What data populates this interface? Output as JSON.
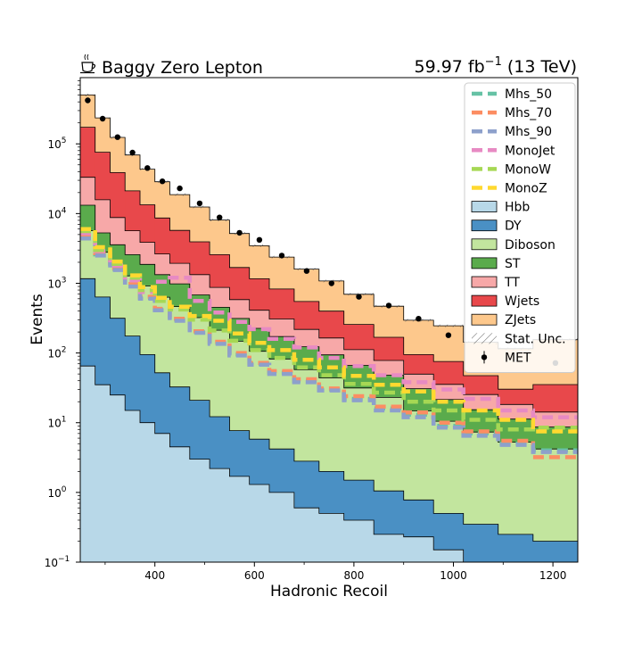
{
  "chart_data": {
    "type": "bar",
    "title_left": "Baggy Zero Lepton",
    "title_left_icon": "coffee-cup-icon",
    "lumi_value": "59.97 fb",
    "lumi_exponent": "−1",
    "lumi_energy": " (13 TeV)",
    "xlabel": "Hadronic Recoil",
    "ylabel": "Events",
    "xlim": [
      250,
      1250
    ],
    "ylim_log10": [
      -1,
      5.95
    ],
    "yscale": "log",
    "x_ticks": [
      400,
      600,
      800,
      1000,
      1200
    ],
    "y_ticks": [
      {
        "exp": -1,
        "base": "10",
        "sup": "−1"
      },
      {
        "exp": 0,
        "base": "10",
        "sup": "0"
      },
      {
        "exp": 1,
        "base": "10",
        "sup": "1"
      },
      {
        "exp": 2,
        "base": "10",
        "sup": "2"
      },
      {
        "exp": 3,
        "base": "10",
        "sup": "3"
      },
      {
        "exp": 4,
        "base": "10",
        "sup": "4"
      },
      {
        "exp": 5,
        "base": "10",
        "sup": "5"
      }
    ],
    "bin_edges": [
      250,
      280,
      310,
      340,
      370,
      400,
      430,
      470,
      510,
      550,
      590,
      630,
      680,
      730,
      780,
      840,
      900,
      960,
      1020,
      1090,
      1160,
      1250
    ],
    "stack": [
      {
        "name": "Hbb",
        "color": "#b8d8e8",
        "values": [
          65,
          35,
          25,
          15,
          10,
          7,
          4.5,
          3,
          2.2,
          1.7,
          1.3,
          1.0,
          0.6,
          0.5,
          0.4,
          0.25,
          0.23,
          0.15,
          0.1,
          0.1,
          0.1
        ]
      },
      {
        "name": "DY",
        "color": "#4a90c4",
        "values": [
          1100,
          600,
          290,
          160,
          85,
          45,
          28,
          18,
          10,
          6,
          4.5,
          3.2,
          2.2,
          1.5,
          1.1,
          0.8,
          0.55,
          0.35,
          0.25,
          0.15,
          0.1
        ]
      },
      {
        "name": "Diboson",
        "color": "#c2e59e",
        "values": [
          4500,
          2150,
          1500,
          1100,
          820,
          580,
          430,
          300,
          200,
          140,
          100,
          78,
          55,
          42,
          30,
          22,
          14,
          10,
          7,
          5,
          4
        ]
      },
      {
        "name": "ST",
        "color": "#5aab4c",
        "values": [
          7500,
          2500,
          1750,
          1300,
          950,
          700,
          520,
          360,
          240,
          165,
          120,
          90,
          65,
          50,
          35,
          25,
          16,
          11,
          8,
          6,
          4.5
        ]
      },
      {
        "name": "TT",
        "color": "#f7a8a8",
        "values": [
          20000,
          10500,
          5200,
          3100,
          2000,
          1300,
          950,
          650,
          420,
          270,
          185,
          135,
          95,
          70,
          45,
          30,
          19,
          14,
          10,
          7,
          5.5
        ]
      },
      {
        "name": "Wjets",
        "color": "#e8484b",
        "values": [
          140000,
          60000,
          30000,
          15500,
          9500,
          6000,
          3800,
          2600,
          1700,
          1100,
          750,
          520,
          330,
          235,
          145,
          90,
          45,
          40,
          22,
          12,
          21
        ]
      },
      {
        "name": "ZJets",
        "color": "#fdc88c",
        "values": [
          330000,
          160000,
          85000,
          48000,
          30000,
          20000,
          13000,
          8500,
          5500,
          3500,
          2300,
          1550,
          1050,
          680,
          440,
          300,
          200,
          170,
          95,
          85,
          120
        ]
      }
    ],
    "signals": [
      {
        "name": "Mhs_50",
        "color": "#66c2a5",
        "values": [
          4600,
          2600,
          1600,
          950,
          620,
          420,
          300,
          200,
          140,
          95,
          70,
          52,
          40,
          30,
          22,
          16,
          13,
          9,
          7,
          5,
          4
        ]
      },
      {
        "name": "Mhs_70",
        "color": "#fc8d62",
        "values": [
          4800,
          2700,
          1650,
          980,
          640,
          430,
          310,
          205,
          145,
          100,
          72,
          55,
          42,
          31,
          24,
          17,
          14,
          10,
          7.5,
          5.5,
          3.2
        ]
      },
      {
        "name": "Mhs_90",
        "color": "#8da0cb",
        "values": [
          4400,
          2500,
          1550,
          900,
          600,
          410,
          290,
          195,
          135,
          92,
          68,
          50,
          38,
          29,
          21,
          15,
          12,
          8.5,
          6.5,
          4.8,
          3.8
        ]
      },
      {
        "name": "MonoJet",
        "color": "#e78ac3",
        "values": [
          5200,
          2900,
          1800,
          1100,
          750,
          1050,
          1200,
          560,
          380,
          280,
          220,
          160,
          120,
          85,
          65,
          48,
          38,
          30,
          22,
          15,
          12
        ]
      },
      {
        "name": "MonoW",
        "color": "#a6d854",
        "values": [
          5600,
          3000,
          1900,
          1200,
          800,
          560,
          420,
          300,
          210,
          150,
          110,
          85,
          62,
          48,
          36,
          27,
          20,
          15,
          11,
          8,
          8.5
        ]
      },
      {
        "name": "MonoZ",
        "color": "#ffd92f",
        "values": [
          6000,
          3300,
          2050,
          1300,
          880,
          620,
          460,
          340,
          290,
          190,
          140,
          110,
          80,
          62,
          47,
          35,
          28,
          20,
          15,
          11,
          7.5
        ]
      }
    ],
    "data": {
      "name": "MET",
      "values": [
        420000,
        230000,
        125000,
        75000,
        45000,
        29000,
        23000,
        14000,
        8800,
        5300,
        4200,
        2500,
        1500,
        1000,
        640,
        480,
        310,
        180,
        null,
        null,
        72
      ]
    },
    "legend_position": "top-right",
    "legend": [
      {
        "name": "Mhs_50",
        "kind": "dash",
        "color": "#66c2a5"
      },
      {
        "name": "Mhs_70",
        "kind": "dash",
        "color": "#fc8d62"
      },
      {
        "name": "Mhs_90",
        "kind": "dash",
        "color": "#8da0cb"
      },
      {
        "name": "MonoJet",
        "kind": "dash",
        "color": "#e78ac3"
      },
      {
        "name": "MonoW",
        "kind": "dash",
        "color": "#a6d854"
      },
      {
        "name": "MonoZ",
        "kind": "dash",
        "color": "#ffd92f"
      },
      {
        "name": "Hbb",
        "kind": "patch",
        "color": "#b8d8e8"
      },
      {
        "name": "DY",
        "kind": "patch",
        "color": "#4a90c4"
      },
      {
        "name": "Diboson",
        "kind": "patch",
        "color": "#c2e59e"
      },
      {
        "name": "ST",
        "kind": "patch",
        "color": "#5aab4c"
      },
      {
        "name": "TT",
        "kind": "patch",
        "color": "#f7a8a8"
      },
      {
        "name": "Wjets",
        "kind": "patch",
        "color": "#e8484b"
      },
      {
        "name": "ZJets",
        "kind": "patch",
        "color": "#fdc88c"
      },
      {
        "name": "Stat. Unc.",
        "kind": "hatch",
        "color": "#555555"
      },
      {
        "name": "MET",
        "kind": "point",
        "color": "#000000"
      }
    ]
  }
}
